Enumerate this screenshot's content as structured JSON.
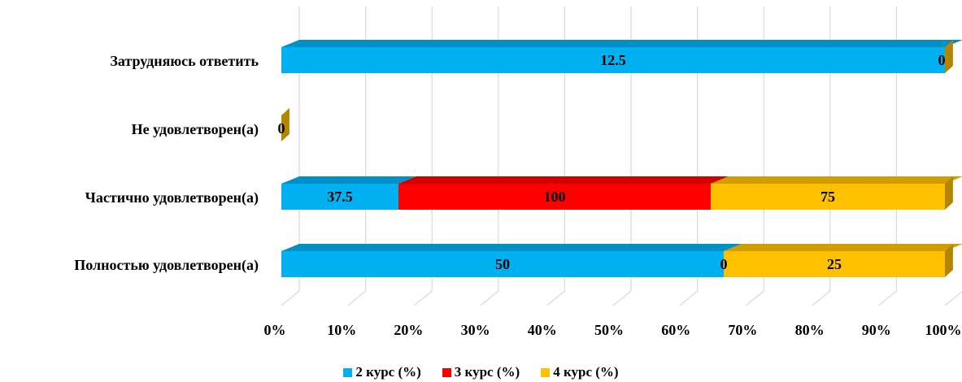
{
  "chart_data": {
    "type": "bar",
    "orientation": "horizontal",
    "stacked": "percent",
    "three_d": true,
    "categories": [
      "Полностью удовлетворен(а)",
      "Частично удовлетворен(а)",
      "Не удовлетворен(а)",
      "Затрудняюсь ответить"
    ],
    "series": [
      {
        "name": "2 курс (%)",
        "color": "#00B0F0",
        "values": [
          50,
          37.5,
          0,
          12.5
        ]
      },
      {
        "name": "3 курс (%)",
        "color": "#FF0000",
        "values": [
          0,
          100,
          0,
          0
        ]
      },
      {
        "name": "4 курс (%)",
        "color": "#FFC000",
        "values": [
          25,
          75,
          0,
          0
        ]
      }
    ],
    "data_labels": [
      [
        "50",
        "0",
        "25"
      ],
      [
        "37.5",
        "100",
        "75"
      ],
      [
        "0",
        null,
        null
      ],
      [
        "12.5",
        "0",
        null
      ]
    ],
    "x_ticks": [
      "0%",
      "10%",
      "20%",
      "30%",
      "40%",
      "50%",
      "60%",
      "70%",
      "80%",
      "90%",
      "100%"
    ],
    "xlim": [
      0,
      100
    ],
    "grid": true,
    "legend_position": "bottom"
  }
}
